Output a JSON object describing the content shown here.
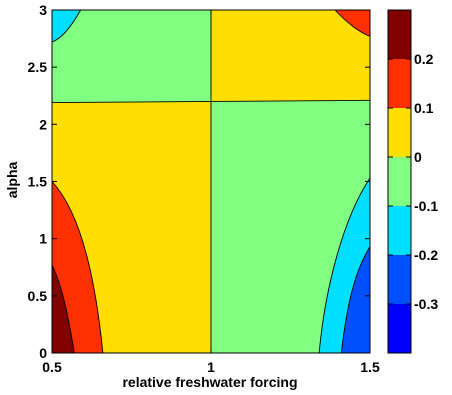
{
  "chart_data": {
    "type": "contour",
    "title": "",
    "xlabel": "relative freshwater forcing",
    "ylabel": "alpha",
    "xlim": [
      0.5,
      1.5
    ],
    "ylim": [
      0,
      3
    ],
    "x_ticks": [
      "0.5",
      "1",
      "1.5"
    ],
    "y_ticks": [
      "0",
      "0.5",
      "1",
      "1.5",
      "2",
      "2.5",
      "3"
    ],
    "colorbar": {
      "range": [
        -0.4,
        0.3
      ],
      "tick_labels": [
        "0.2",
        "0.1",
        "0",
        "-0.1",
        "-0.2",
        "-0.3"
      ],
      "levels": [
        {
          "from": -0.4,
          "to": -0.3,
          "color": "#0000ff"
        },
        {
          "from": -0.3,
          "to": -0.2,
          "color": "#0050ff"
        },
        {
          "from": -0.2,
          "to": -0.1,
          "color": "#00dfff"
        },
        {
          "from": -0.1,
          "to": 0.0,
          "color": "#80ff80"
        },
        {
          "from": 0.0,
          "to": 0.1,
          "color": "#ffdf00"
        },
        {
          "from": 0.1,
          "to": 0.2,
          "color": "#ff3000"
        },
        {
          "from": 0.2,
          "to": 0.3,
          "color": "#800000"
        }
      ]
    },
    "regions": [
      {
        "level": 0.05,
        "color": "#ffdf00",
        "x_range": [
          0.5,
          1.0
        ],
        "y_range": [
          0,
          2.2
        ]
      },
      {
        "level": -0.05,
        "color": "#80ff80",
        "x_range": [
          1.0,
          1.5
        ],
        "y_range": [
          0,
          2.2
        ]
      },
      {
        "level": -0.05,
        "color": "#80ff80",
        "x_range": [
          0.5,
          1.0
        ],
        "y_range": [
          2.2,
          3
        ]
      },
      {
        "level": 0.05,
        "color": "#ffdf00",
        "x_range": [
          1.0,
          1.5
        ],
        "y_range": [
          2.2,
          3
        ]
      },
      {
        "level": 0.15,
        "color": "#ff3000",
        "corner": "bottom-left"
      },
      {
        "level": 0.25,
        "color": "#800000",
        "corner": "bottom-left"
      },
      {
        "level": -0.15,
        "color": "#00dfff",
        "corner": "bottom-right"
      },
      {
        "level": -0.25,
        "color": "#0050ff",
        "corner": "bottom-right"
      },
      {
        "level": -0.15,
        "color": "#00dfff",
        "corner": "top-left"
      },
      {
        "level": 0.15,
        "color": "#ff3000",
        "corner": "top-right"
      }
    ]
  }
}
